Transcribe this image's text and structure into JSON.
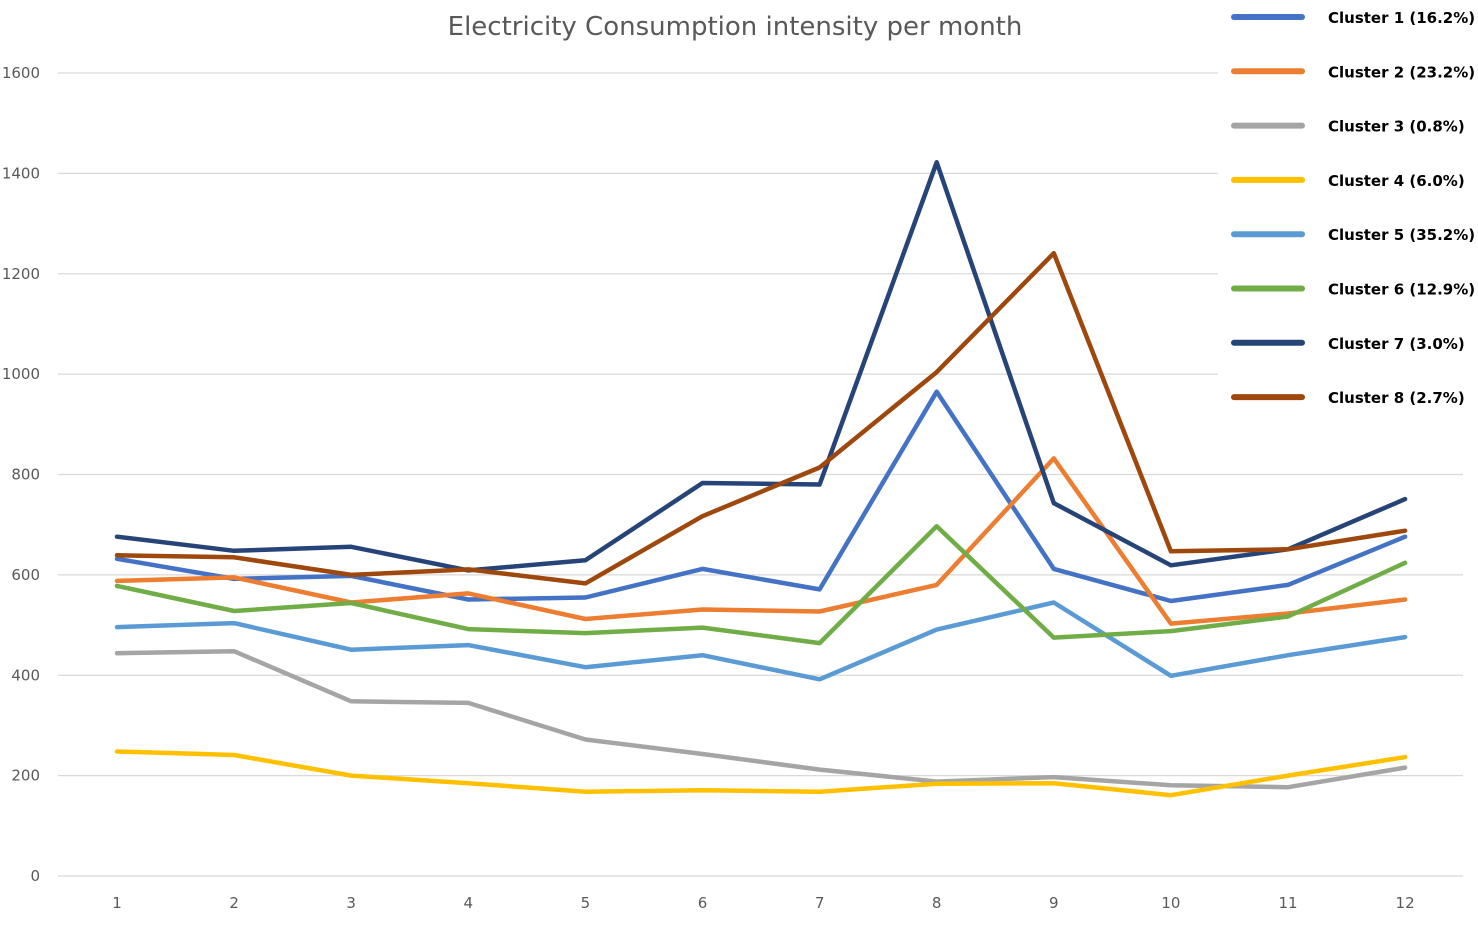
{
  "chart_data": {
    "type": "line",
    "title": "Electricity Consumption intensity per month",
    "xlabel": "",
    "ylabel": "",
    "x": [
      1,
      2,
      3,
      4,
      5,
      6,
      7,
      8,
      9,
      10,
      11,
      12
    ],
    "ylim": [
      0,
      1600
    ],
    "yticks": [
      0,
      200,
      400,
      600,
      800,
      1000,
      1200,
      1400,
      1600
    ],
    "grid": true,
    "legend_position": "top-right",
    "series": [
      {
        "name": "Cluster 1 (16.2%)",
        "color": "#4472C4",
        "values": [
          632,
          592,
          598,
          551,
          555,
          612,
          571,
          965,
          612,
          548,
          580,
          676
        ]
      },
      {
        "name": "Cluster 2 (23.2%)",
        "color": "#ED7D31",
        "values": [
          588,
          595,
          545,
          563,
          512,
          531,
          527,
          580,
          832,
          503,
          523,
          551
        ]
      },
      {
        "name": "Cluster 3 (0.8%)",
        "color": "#A5A5A5",
        "values": [
          444,
          448,
          348,
          345,
          272,
          243,
          212,
          188,
          197,
          181,
          177,
          216
        ]
      },
      {
        "name": "Cluster 4 (6.0%)",
        "color": "#FFC000",
        "values": [
          248,
          241,
          200,
          185,
          168,
          171,
          168,
          184,
          185,
          161,
          200,
          237
        ]
      },
      {
        "name": "Cluster 5 (35.2%)",
        "color": "#5B9BD5",
        "values": [
          496,
          504,
          451,
          460,
          416,
          440,
          392,
          491,
          545,
          399,
          440,
          476
        ]
      },
      {
        "name": "Cluster 6 (12.9%)",
        "color": "#70AD47",
        "values": [
          578,
          528,
          544,
          492,
          484,
          495,
          464,
          697,
          475,
          488,
          517,
          624
        ]
      },
      {
        "name": "Cluster 7 (3.0%)",
        "color": "#264478",
        "values": [
          676,
          648,
          656,
          609,
          629,
          783,
          780,
          1422,
          743,
          619,
          651,
          751
        ]
      },
      {
        "name": "Cluster 8 (2.7%)",
        "color": "#9E480E",
        "values": [
          639,
          635,
          600,
          611,
          583,
          717,
          814,
          1004,
          1241,
          647,
          651,
          688
        ]
      }
    ]
  }
}
